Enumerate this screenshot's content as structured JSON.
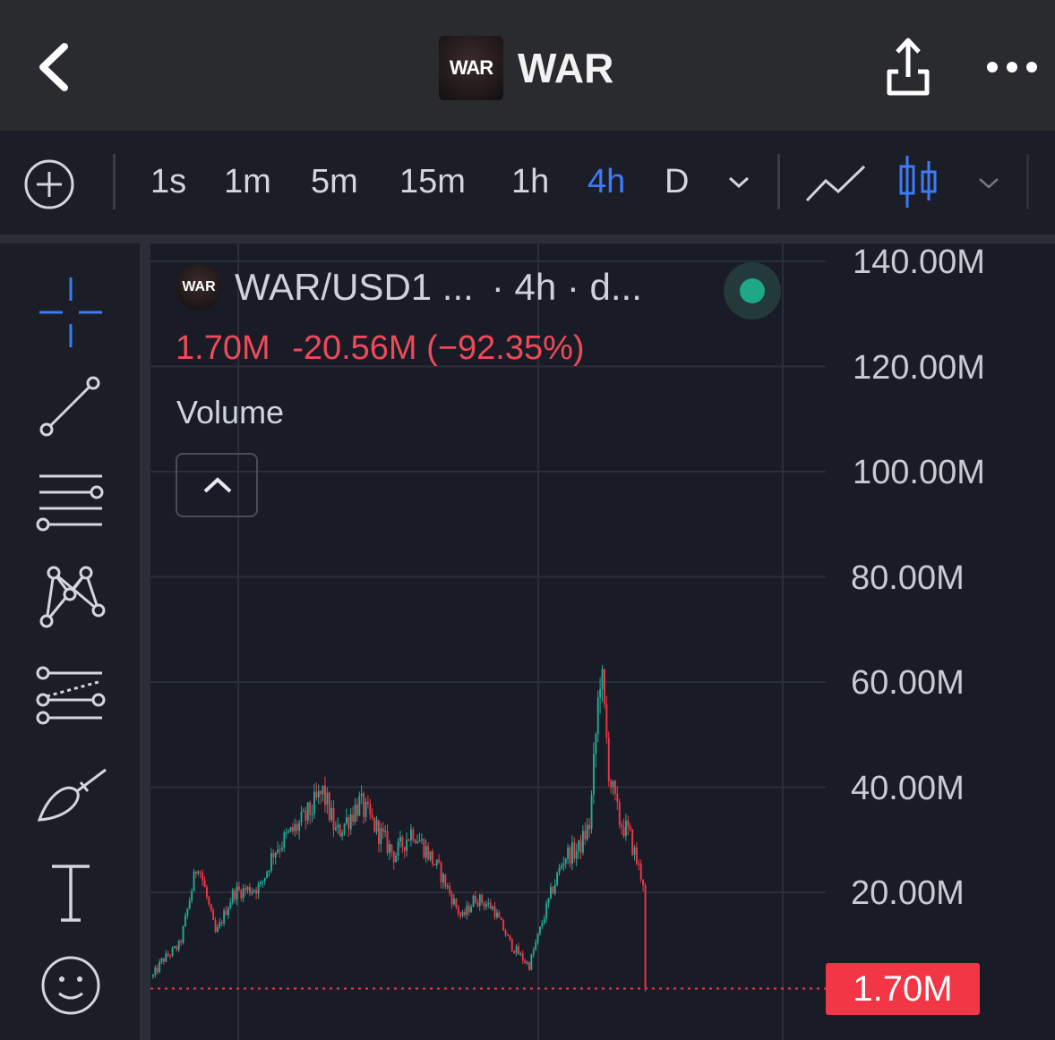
{
  "header": {
    "title": "WAR",
    "logo_text": "WAR"
  },
  "toolbar": {
    "intervals": [
      {
        "label": "1s",
        "active": false
      },
      {
        "label": "1m",
        "active": false
      },
      {
        "label": "5m",
        "active": false
      },
      {
        "label": "15m",
        "active": false
      },
      {
        "label": "1h",
        "active": false
      },
      {
        "label": "4h",
        "active": true
      },
      {
        "label": "D",
        "active": false
      }
    ],
    "active_color": "#3d7bf7"
  },
  "drawing_tools": [
    "crosshair-icon",
    "trend-line-icon",
    "horizontal-lines-icon",
    "pattern-icon",
    "fib-icon",
    "brush-icon",
    "text-icon",
    "emoji-icon"
  ],
  "legend": {
    "symbol": "WAR/USD1 ...",
    "interval_text": "· 4h · d...",
    "price": "1.70M",
    "change": "-20.56M (−92.35%)",
    "indicator": "Volume",
    "status_color": "#1fa788"
  },
  "price_axis": {
    "labels": [
      "140.00M",
      "120.00M",
      "100.00M",
      "80.00M",
      "60.00M",
      "40.00M",
      "20.00M"
    ],
    "last_price_label": "1.70M",
    "last_price_color": "#f23645"
  },
  "chart_data": {
    "type": "candlestick",
    "ylim": [
      0,
      145
    ],
    "y_unit": "M",
    "up_color": "#22ab94",
    "down_color": "#f23645",
    "last_price": 1.7,
    "anchors": [
      [
        0,
        4
      ],
      [
        10,
        7
      ],
      [
        30,
        10
      ],
      [
        50,
        26
      ],
      [
        70,
        12
      ],
      [
        90,
        20
      ],
      [
        120,
        21
      ],
      [
        135,
        28
      ],
      [
        170,
        34
      ],
      [
        190,
        39
      ],
      [
        205,
        31
      ],
      [
        230,
        37
      ],
      [
        270,
        27
      ],
      [
        290,
        32
      ],
      [
        320,
        24
      ],
      [
        345,
        15
      ],
      [
        360,
        19
      ],
      [
        380,
        17
      ],
      [
        400,
        10
      ],
      [
        420,
        6
      ],
      [
        445,
        20
      ],
      [
        460,
        27
      ],
      [
        475,
        28
      ],
      [
        488,
        33
      ],
      [
        500,
        63
      ],
      [
        510,
        42
      ],
      [
        520,
        34
      ],
      [
        532,
        31
      ],
      [
        542,
        25
      ],
      [
        548,
        22
      ],
      [
        550,
        1.7
      ]
    ]
  }
}
